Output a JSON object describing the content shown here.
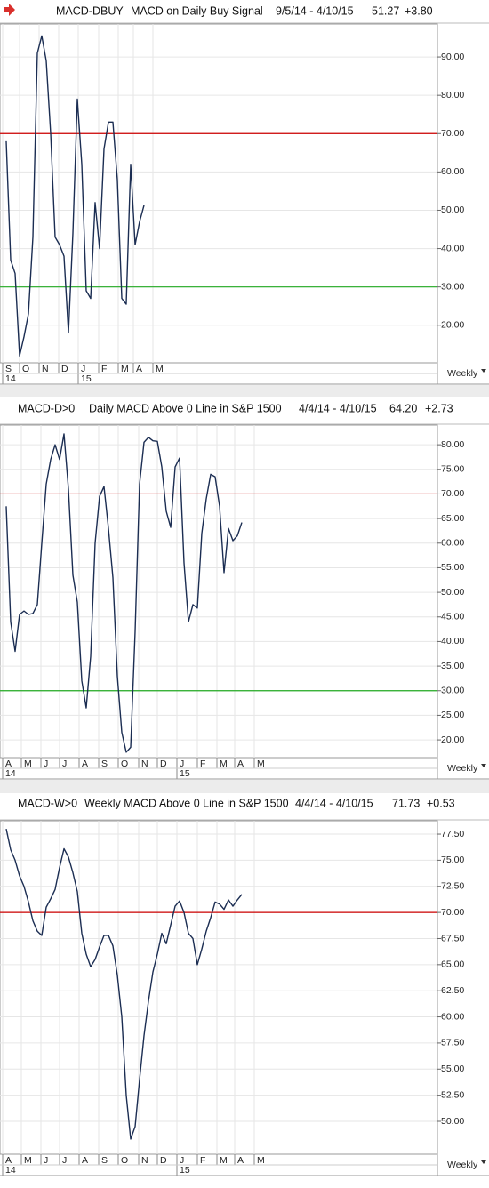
{
  "chart_data": [
    {
      "type": "line",
      "symbol": "MACD-DBUY",
      "title": "MACD on Daily Buy Signal",
      "date_range": "9/5/14 - 4/10/15",
      "last": "51.27",
      "change": "+3.80",
      "period": "Weekly",
      "color": "#1b2d52",
      "values": [
        68,
        37,
        33.5,
        12,
        17,
        23,
        43,
        91,
        95.5,
        89,
        70,
        43,
        41,
        38,
        18,
        44,
        79,
        62,
        29,
        27,
        52,
        40,
        66,
        73,
        73,
        58,
        27,
        25.5,
        62,
        41,
        47,
        51.27
      ],
      "xlim": [
        -1.4,
        97
      ],
      "xticks": [
        {
          "value": -0.8,
          "label": "S"
        },
        {
          "value": 3,
          "label": "O"
        },
        {
          "value": 7.4,
          "label": "N"
        },
        {
          "value": 11.8,
          "label": "D"
        },
        {
          "value": 16.2,
          "label": "J"
        },
        {
          "value": 20.8,
          "label": "F"
        },
        {
          "value": 25.2,
          "label": "M"
        },
        {
          "value": 28.6,
          "label": "A"
        },
        {
          "value": 33,
          "label": "M"
        }
      ],
      "year_ticks": [
        {
          "value": -0.8,
          "label": "14"
        },
        {
          "value": 16.2,
          "label": "15"
        }
      ],
      "ylim": [
        10.2,
        98.6
      ],
      "yticks": [
        {
          "value": 20,
          "label": "20.00"
        },
        {
          "value": 30,
          "label": "30.00"
        },
        {
          "value": 40,
          "label": "40.00"
        },
        {
          "value": 50,
          "label": "50.00"
        },
        {
          "value": 60,
          "label": "60.00"
        },
        {
          "value": 70,
          "label": "70.00"
        },
        {
          "value": 80,
          "label": "80.00"
        },
        {
          "value": 90,
          "label": "90.00"
        }
      ],
      "reference_lines": [
        {
          "value": 70,
          "color": "#cc0000"
        },
        {
          "value": 30,
          "color": "#22aa22"
        }
      ],
      "grid": true
    },
    {
      "type": "line",
      "symbol": "MACD-D>0",
      "title": "Daily MACD Above 0 Line in S&P 1500",
      "date_range": "4/4/14 - 4/10/15",
      "last": "64.20",
      "change": "+2.73",
      "period": "Weekly",
      "color": "#1b2d52",
      "values": [
        67.5,
        44,
        38,
        45.5,
        46.2,
        45.5,
        45.7,
        47.5,
        60,
        72,
        77,
        80,
        77,
        82.2,
        71,
        53.5,
        48,
        32,
        26.5,
        37,
        60,
        69.5,
        71.5,
        63,
        53,
        33,
        21.5,
        17.5,
        18.5,
        42,
        72,
        80.5,
        81.5,
        80.8,
        80.7,
        75.5,
        66.5,
        63.2,
        75.5,
        77.3,
        56,
        44,
        47.5,
        46.8,
        62,
        69,
        74,
        73.5,
        67.5,
        54,
        63,
        60.5,
        61.5,
        64.2
      ],
      "xlim": [
        -1.4,
        97
      ],
      "xticks": [
        {
          "value": -0.8,
          "label": "A"
        },
        {
          "value": 3.4,
          "label": "M"
        },
        {
          "value": 7.8,
          "label": "J"
        },
        {
          "value": 12,
          "label": "J"
        },
        {
          "value": 16.4,
          "label": "A"
        },
        {
          "value": 20.8,
          "label": "S"
        },
        {
          "value": 25.2,
          "label": "O"
        },
        {
          "value": 29.8,
          "label": "N"
        },
        {
          "value": 34,
          "label": "D"
        },
        {
          "value": 38.4,
          "label": "J"
        },
        {
          "value": 43,
          "label": "F"
        },
        {
          "value": 47.4,
          "label": "M"
        },
        {
          "value": 51.4,
          "label": "A"
        },
        {
          "value": 55.8,
          "label": "M"
        }
      ],
      "year_ticks": [
        {
          "value": -0.8,
          "label": "14"
        },
        {
          "value": 38.4,
          "label": "15"
        }
      ],
      "ylim": [
        16.4,
        84
      ],
      "yticks": [
        {
          "value": 20,
          "label": "20.00"
        },
        {
          "value": 25,
          "label": "25.00"
        },
        {
          "value": 30,
          "label": "30.00"
        },
        {
          "value": 35,
          "label": "35.00"
        },
        {
          "value": 40,
          "label": "40.00"
        },
        {
          "value": 45,
          "label": "45.00"
        },
        {
          "value": 50,
          "label": "50.00"
        },
        {
          "value": 55,
          "label": "55.00"
        },
        {
          "value": 60,
          "label": "60.00"
        },
        {
          "value": 65,
          "label": "65.00"
        },
        {
          "value": 70,
          "label": "70.00"
        },
        {
          "value": 75,
          "label": "75.00"
        },
        {
          "value": 80,
          "label": "80.00"
        }
      ],
      "reference_lines": [
        {
          "value": 70,
          "color": "#cc0000"
        },
        {
          "value": 30,
          "color": "#22aa22"
        }
      ],
      "grid": true
    },
    {
      "type": "line",
      "symbol": "MACD-W>0",
      "title": "Weekly MACD Above 0 Line in S&P 1500",
      "date_range": "4/4/14 - 4/10/15",
      "last": "71.73",
      "change": "+0.53",
      "period": "Weekly",
      "color": "#1b2d52",
      "values": [
        78,
        76,
        75,
        73.5,
        72.5,
        71,
        69.2,
        68.2,
        67.8,
        70.5,
        71.3,
        72.2,
        74.3,
        76.1,
        75.3,
        73.8,
        72,
        68,
        66,
        64.8,
        65.5,
        66.7,
        67.8,
        67.8,
        66.8,
        64,
        60,
        52.5,
        48.3,
        49.5,
        54,
        58.2,
        61.5,
        64.3,
        66,
        68,
        67,
        68.8,
        70.6,
        71.1,
        70,
        68,
        67.5,
        65,
        66.5,
        68.2,
        69.5,
        71,
        70.8,
        70.3,
        71.2,
        70.6,
        71.2,
        71.73
      ],
      "xlim": [
        -1.4,
        97
      ],
      "xticks": [
        {
          "value": -0.8,
          "label": "A"
        },
        {
          "value": 3.4,
          "label": "M"
        },
        {
          "value": 7.8,
          "label": "J"
        },
        {
          "value": 12,
          "label": "J"
        },
        {
          "value": 16.4,
          "label": "A"
        },
        {
          "value": 20.8,
          "label": "S"
        },
        {
          "value": 25.2,
          "label": "O"
        },
        {
          "value": 29.8,
          "label": "N"
        },
        {
          "value": 34,
          "label": "D"
        },
        {
          "value": 38.4,
          "label": "J"
        },
        {
          "value": 43,
          "label": "F"
        },
        {
          "value": 47.4,
          "label": "M"
        },
        {
          "value": 51.4,
          "label": "A"
        },
        {
          "value": 55.8,
          "label": "M"
        }
      ],
      "year_ticks": [
        {
          "value": -0.8,
          "label": "14"
        },
        {
          "value": 38.4,
          "label": "15"
        }
      ],
      "ylim": [
        46.85,
        78.78
      ],
      "yticks": [
        {
          "value": 50,
          "label": "50.00"
        },
        {
          "value": 52.5,
          "label": "52.50"
        },
        {
          "value": 55,
          "label": "55.00"
        },
        {
          "value": 57.5,
          "label": "57.50"
        },
        {
          "value": 60,
          "label": "60.00"
        },
        {
          "value": 62.5,
          "label": "62.50"
        },
        {
          "value": 65,
          "label": "65.00"
        },
        {
          "value": 67.5,
          "label": "67.50"
        },
        {
          "value": 70,
          "label": "70.00"
        },
        {
          "value": 72.5,
          "label": "72.50"
        },
        {
          "value": 75,
          "label": "75.00"
        },
        {
          "value": 77.5,
          "label": "77.50"
        }
      ],
      "reference_lines": [
        {
          "value": 70,
          "color": "#cc0000"
        }
      ],
      "grid": true
    }
  ]
}
